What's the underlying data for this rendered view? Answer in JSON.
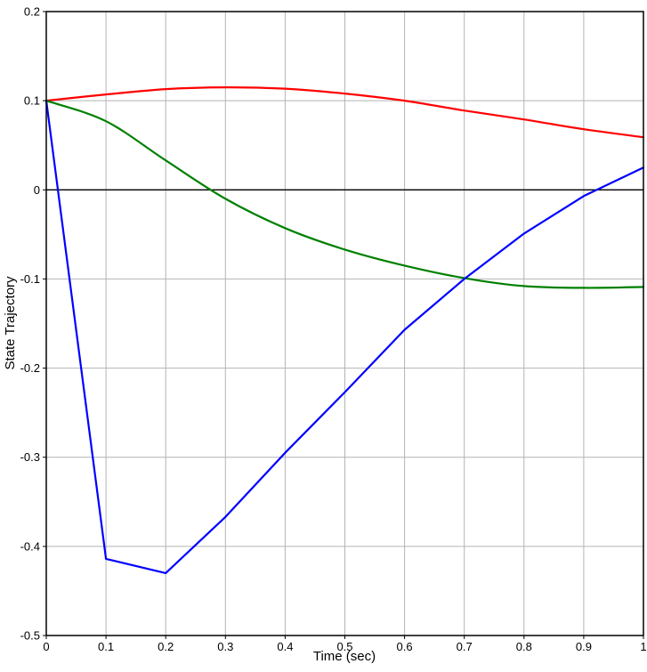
{
  "chart_data": {
    "type": "line",
    "title": "",
    "xlabel": "Time (sec)",
    "ylabel": "State Trajectory",
    "xlim": [
      0,
      1
    ],
    "ylim": [
      -0.5,
      0.2
    ],
    "grid": true,
    "legend": "none",
    "background": "#ffffff",
    "grid_color": "#b4b4b4",
    "axis_color": "#000000",
    "zero_line": true,
    "x_ticks": {
      "values": [
        0,
        0.1,
        0.2,
        0.3,
        0.4,
        0.5,
        0.6,
        0.7,
        0.8,
        0.9,
        1
      ],
      "labels": [
        "0",
        "0.1",
        "0.2",
        "0.3",
        "0.4",
        "0.5",
        "0.6",
        "0.7",
        "0.8",
        "0.9",
        "1"
      ]
    },
    "y_ticks": {
      "values": [
        0.2,
        0.1,
        0,
        -0.1,
        -0.2,
        -0.3,
        -0.4,
        -0.5
      ],
      "labels": [
        "0.2",
        "0.1",
        "0",
        "-0.1",
        "-0.2",
        "-0.3",
        "-0.4",
        "-0.5"
      ]
    },
    "x": [
      0,
      0.1,
      0.2,
      0.3,
      0.4,
      0.5,
      0.6,
      0.7,
      0.8,
      0.9,
      1.0
    ],
    "series": [
      {
        "name": "red-series",
        "color": "#ff0000",
        "smooth": true,
        "values": [
          0.1,
          0.107,
          0.113,
          0.115,
          0.1135,
          0.108,
          0.1,
          0.089,
          0.079,
          0.068,
          0.059
        ]
      },
      {
        "name": "green-series",
        "color": "#008000",
        "smooth": true,
        "values": [
          0.1,
          0.077,
          0.033,
          -0.01,
          -0.043,
          -0.067,
          -0.085,
          -0.099,
          -0.108,
          -0.11,
          -0.109
        ]
      },
      {
        "name": "blue-series",
        "color": "#0000ff",
        "smooth": false,
        "values": [
          0.1,
          -0.414,
          -0.43,
          -0.367,
          -0.295,
          -0.227,
          -0.157,
          -0.1,
          -0.049,
          -0.007,
          0.025
        ]
      }
    ]
  }
}
